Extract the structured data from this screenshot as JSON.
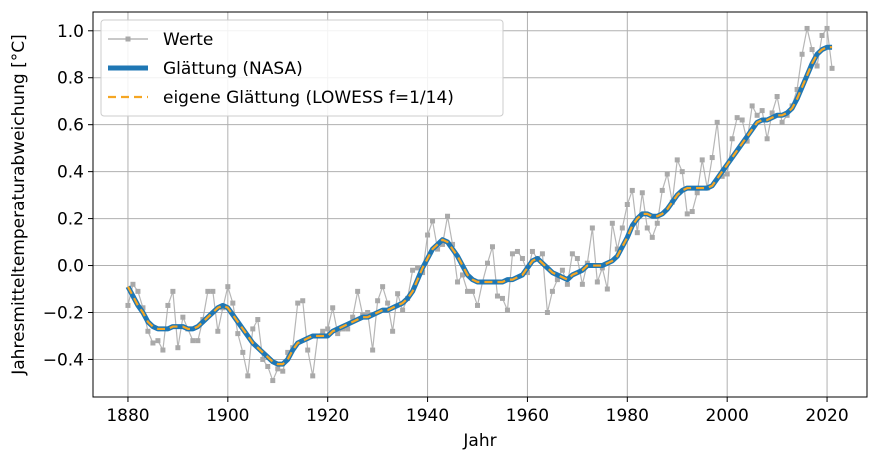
{
  "chart_data": {
    "type": "line",
    "xlabel": "Jahr",
    "ylabel": "Jahresmitteltemperaturabweichung [°C]",
    "xlim": [
      1873,
      2028
    ],
    "ylim": [
      -0.56,
      1.08
    ],
    "xticks": [
      1880,
      1900,
      1920,
      1940,
      1960,
      1980,
      2000,
      2020
    ],
    "yticks": [
      -0.4,
      -0.2,
      0.0,
      0.2,
      0.4,
      0.6,
      0.8,
      1.0
    ],
    "xtick_labels": [
      "1880",
      "1900",
      "1920",
      "1940",
      "1960",
      "1980",
      "2000",
      "2020"
    ],
    "ytick_labels": [
      "−0.4",
      "−0.2",
      "0.0",
      "0.2",
      "0.4",
      "0.6",
      "0.8",
      "1.0"
    ],
    "grid": true,
    "legend_position": "top-left",
    "x": [
      1880,
      1881,
      1882,
      1883,
      1884,
      1885,
      1886,
      1887,
      1888,
      1889,
      1890,
      1891,
      1892,
      1893,
      1894,
      1895,
      1896,
      1897,
      1898,
      1899,
      1900,
      1901,
      1902,
      1903,
      1904,
      1905,
      1906,
      1907,
      1908,
      1909,
      1910,
      1911,
      1912,
      1913,
      1914,
      1915,
      1916,
      1917,
      1918,
      1919,
      1920,
      1921,
      1922,
      1923,
      1924,
      1925,
      1926,
      1927,
      1928,
      1929,
      1930,
      1931,
      1932,
      1933,
      1934,
      1935,
      1936,
      1937,
      1938,
      1939,
      1940,
      1941,
      1942,
      1943,
      1944,
      1945,
      1946,
      1947,
      1948,
      1949,
      1950,
      1951,
      1952,
      1953,
      1954,
      1955,
      1956,
      1957,
      1958,
      1959,
      1960,
      1961,
      1962,
      1963,
      1964,
      1965,
      1966,
      1967,
      1968,
      1969,
      1970,
      1971,
      1972,
      1973,
      1974,
      1975,
      1976,
      1977,
      1978,
      1979,
      1980,
      1981,
      1982,
      1983,
      1984,
      1985,
      1986,
      1987,
      1988,
      1989,
      1990,
      1991,
      1992,
      1993,
      1994,
      1995,
      1996,
      1997,
      1998,
      1999,
      2000,
      2001,
      2002,
      2003,
      2004,
      2005,
      2006,
      2007,
      2008,
      2009,
      2010,
      2011,
      2012,
      2013,
      2014,
      2015,
      2016,
      2017,
      2018,
      2019,
      2020,
      2021
    ],
    "series": [
      {
        "name": "Werte",
        "color": "#a9a9a9",
        "marker": "square",
        "values": [
          -0.17,
          -0.08,
          -0.11,
          -0.18,
          -0.28,
          -0.33,
          -0.32,
          -0.36,
          -0.17,
          -0.11,
          -0.35,
          -0.22,
          -0.27,
          -0.32,
          -0.32,
          -0.23,
          -0.11,
          -0.11,
          -0.28,
          -0.18,
          -0.09,
          -0.16,
          -0.29,
          -0.37,
          -0.47,
          -0.27,
          -0.23,
          -0.4,
          -0.43,
          -0.49,
          -0.44,
          -0.45,
          -0.37,
          -0.35,
          -0.16,
          -0.15,
          -0.36,
          -0.47,
          -0.3,
          -0.28,
          -0.27,
          -0.18,
          -0.29,
          -0.27,
          -0.27,
          -0.22,
          -0.11,
          -0.21,
          -0.2,
          -0.36,
          -0.15,
          -0.09,
          -0.16,
          -0.28,
          -0.12,
          -0.19,
          -0.14,
          -0.02,
          -0.01,
          -0.03,
          0.13,
          0.19,
          0.07,
          0.09,
          0.21,
          0.09,
          -0.07,
          -0.04,
          -0.11,
          -0.11,
          -0.17,
          -0.07,
          0.01,
          0.08,
          -0.13,
          -0.14,
          -0.19,
          0.05,
          0.06,
          0.03,
          -0.03,
          0.06,
          0.03,
          0.05,
          -0.2,
          -0.11,
          -0.06,
          -0.02,
          -0.08,
          0.05,
          0.03,
          -0.08,
          0.01,
          0.16,
          -0.07,
          -0.01,
          -0.1,
          0.18,
          0.07,
          0.16,
          0.26,
          0.32,
          0.14,
          0.31,
          0.16,
          0.12,
          0.18,
          0.32,
          0.39,
          0.27,
          0.45,
          0.4,
          0.22,
          0.23,
          0.31,
          0.45,
          0.33,
          0.46,
          0.61,
          0.38,
          0.39,
          0.54,
          0.63,
          0.62,
          0.53,
          0.68,
          0.64,
          0.66,
          0.54,
          0.65,
          0.72,
          0.61,
          0.64,
          0.68,
          0.75,
          0.9,
          1.01,
          0.92,
          0.85,
          0.98,
          1.01,
          0.84
        ]
      },
      {
        "name": "Glättung (NASA)",
        "color": "#1f77b4",
        "values": [
          -0.09,
          -0.13,
          -0.17,
          -0.2,
          -0.24,
          -0.26,
          -0.27,
          -0.27,
          -0.27,
          -0.26,
          -0.26,
          -0.26,
          -0.27,
          -0.27,
          -0.26,
          -0.24,
          -0.22,
          -0.2,
          -0.18,
          -0.17,
          -0.18,
          -0.21,
          -0.24,
          -0.27,
          -0.3,
          -0.33,
          -0.35,
          -0.37,
          -0.39,
          -0.41,
          -0.42,
          -0.42,
          -0.4,
          -0.36,
          -0.33,
          -0.32,
          -0.31,
          -0.3,
          -0.3,
          -0.3,
          -0.3,
          -0.28,
          -0.27,
          -0.26,
          -0.25,
          -0.24,
          -0.23,
          -0.22,
          -0.22,
          -0.21,
          -0.2,
          -0.19,
          -0.19,
          -0.18,
          -0.17,
          -0.16,
          -0.14,
          -0.11,
          -0.06,
          -0.01,
          0.03,
          0.07,
          0.09,
          0.11,
          0.1,
          0.07,
          0.04,
          0.0,
          -0.04,
          -0.06,
          -0.07,
          -0.07,
          -0.07,
          -0.07,
          -0.07,
          -0.07,
          -0.06,
          -0.06,
          -0.05,
          -0.04,
          -0.01,
          0.02,
          0.03,
          0.01,
          -0.01,
          -0.03,
          -0.04,
          -0.05,
          -0.06,
          -0.04,
          -0.03,
          -0.02,
          0.0,
          0.0,
          0.0,
          0.0,
          0.01,
          0.02,
          0.04,
          0.08,
          0.12,
          0.17,
          0.2,
          0.22,
          0.22,
          0.21,
          0.21,
          0.22,
          0.24,
          0.27,
          0.3,
          0.32,
          0.33,
          0.33,
          0.33,
          0.33,
          0.33,
          0.34,
          0.37,
          0.4,
          0.43,
          0.46,
          0.49,
          0.52,
          0.55,
          0.58,
          0.61,
          0.62,
          0.62,
          0.63,
          0.64,
          0.64,
          0.65,
          0.67,
          0.71,
          0.76,
          0.81,
          0.86,
          0.9,
          0.92,
          0.93,
          0.93
        ]
      },
      {
        "name": "eigene Glättung (LOWESS f=1/14)",
        "color": "#f5a623",
        "values": [
          -0.09,
          -0.13,
          -0.17,
          -0.2,
          -0.24,
          -0.26,
          -0.27,
          -0.27,
          -0.27,
          -0.26,
          -0.26,
          -0.26,
          -0.27,
          -0.27,
          -0.26,
          -0.24,
          -0.22,
          -0.2,
          -0.18,
          -0.17,
          -0.18,
          -0.21,
          -0.24,
          -0.27,
          -0.3,
          -0.33,
          -0.35,
          -0.37,
          -0.39,
          -0.41,
          -0.42,
          -0.42,
          -0.4,
          -0.36,
          -0.33,
          -0.32,
          -0.31,
          -0.3,
          -0.3,
          -0.3,
          -0.3,
          -0.28,
          -0.27,
          -0.26,
          -0.25,
          -0.24,
          -0.23,
          -0.22,
          -0.22,
          -0.21,
          -0.2,
          -0.19,
          -0.19,
          -0.18,
          -0.17,
          -0.16,
          -0.14,
          -0.11,
          -0.06,
          -0.01,
          0.03,
          0.07,
          0.09,
          0.11,
          0.1,
          0.07,
          0.04,
          0.0,
          -0.04,
          -0.06,
          -0.07,
          -0.07,
          -0.07,
          -0.07,
          -0.07,
          -0.07,
          -0.06,
          -0.06,
          -0.05,
          -0.04,
          -0.01,
          0.02,
          0.03,
          0.01,
          -0.01,
          -0.03,
          -0.04,
          -0.05,
          -0.06,
          -0.04,
          -0.03,
          -0.02,
          0.0,
          0.0,
          0.0,
          0.0,
          0.01,
          0.02,
          0.04,
          0.08,
          0.12,
          0.17,
          0.2,
          0.22,
          0.22,
          0.21,
          0.21,
          0.22,
          0.24,
          0.27,
          0.3,
          0.32,
          0.33,
          0.33,
          0.33,
          0.33,
          0.33,
          0.34,
          0.37,
          0.4,
          0.43,
          0.46,
          0.49,
          0.52,
          0.55,
          0.58,
          0.61,
          0.62,
          0.62,
          0.63,
          0.64,
          0.64,
          0.65,
          0.67,
          0.71,
          0.76,
          0.81,
          0.86,
          0.9,
          0.92,
          0.93,
          0.93
        ]
      }
    ]
  }
}
